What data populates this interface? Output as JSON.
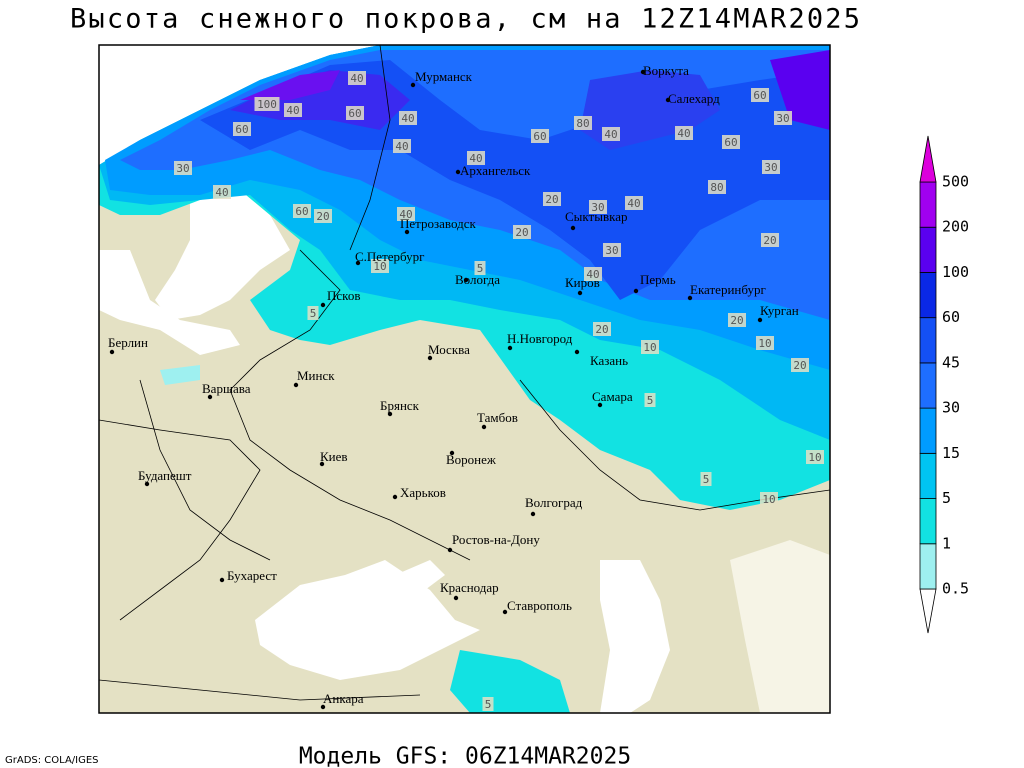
{
  "title": "Высота снежного покрова, см на 12Z14MAR2025",
  "footer": "Модель GFS: 06Z14MAR2025",
  "credit": "GrADS: COLA/IGES",
  "cities": [
    "Мурманск",
    "Воркута",
    "Салехард",
    "Архангельск",
    "Петрозаводск",
    "Сыктывкар",
    "С.Петербург",
    "Вологда",
    "Киров",
    "Пермь",
    "Екатеринбург",
    "Курган",
    "Псков",
    "Берлин",
    "Н.Новгород",
    "Москва",
    "Казань",
    "Минск",
    "Варшава",
    "Самара",
    "Брянск",
    "Тамбов",
    "Киев",
    "Воронеж",
    "Будапешт",
    "Харьков",
    "Волгоград",
    "Ростов-на-Дону",
    "Бухарест",
    "Краснодар",
    "Ставрополь",
    "Анкара"
  ],
  "contour_labels": [
    "40",
    "100",
    "40",
    "60",
    "40",
    "60",
    "30",
    "40",
    "80",
    "40",
    "60",
    "40",
    "40",
    "40",
    "30",
    "60",
    "60",
    "30",
    "80",
    "40",
    "20",
    "30",
    "20",
    "20",
    "40",
    "60",
    "20",
    "10",
    "5",
    "40",
    "30",
    "20",
    "10",
    "20",
    "10",
    "10",
    "5",
    "10",
    "5",
    "5",
    "5",
    "20"
  ],
  "colorbar": {
    "labels": [
      0.5,
      1,
      5,
      15,
      30,
      45,
      60,
      100,
      200,
      500
    ],
    "colors": [
      "#ffffff",
      "#9ef0f0",
      "#12e2e2",
      "#00c4f2",
      "#009cff",
      "#1e6eff",
      "#1450f5",
      "#0a28e6",
      "#5a00f0",
      "#a000f0",
      "#dc00dc"
    ]
  }
}
